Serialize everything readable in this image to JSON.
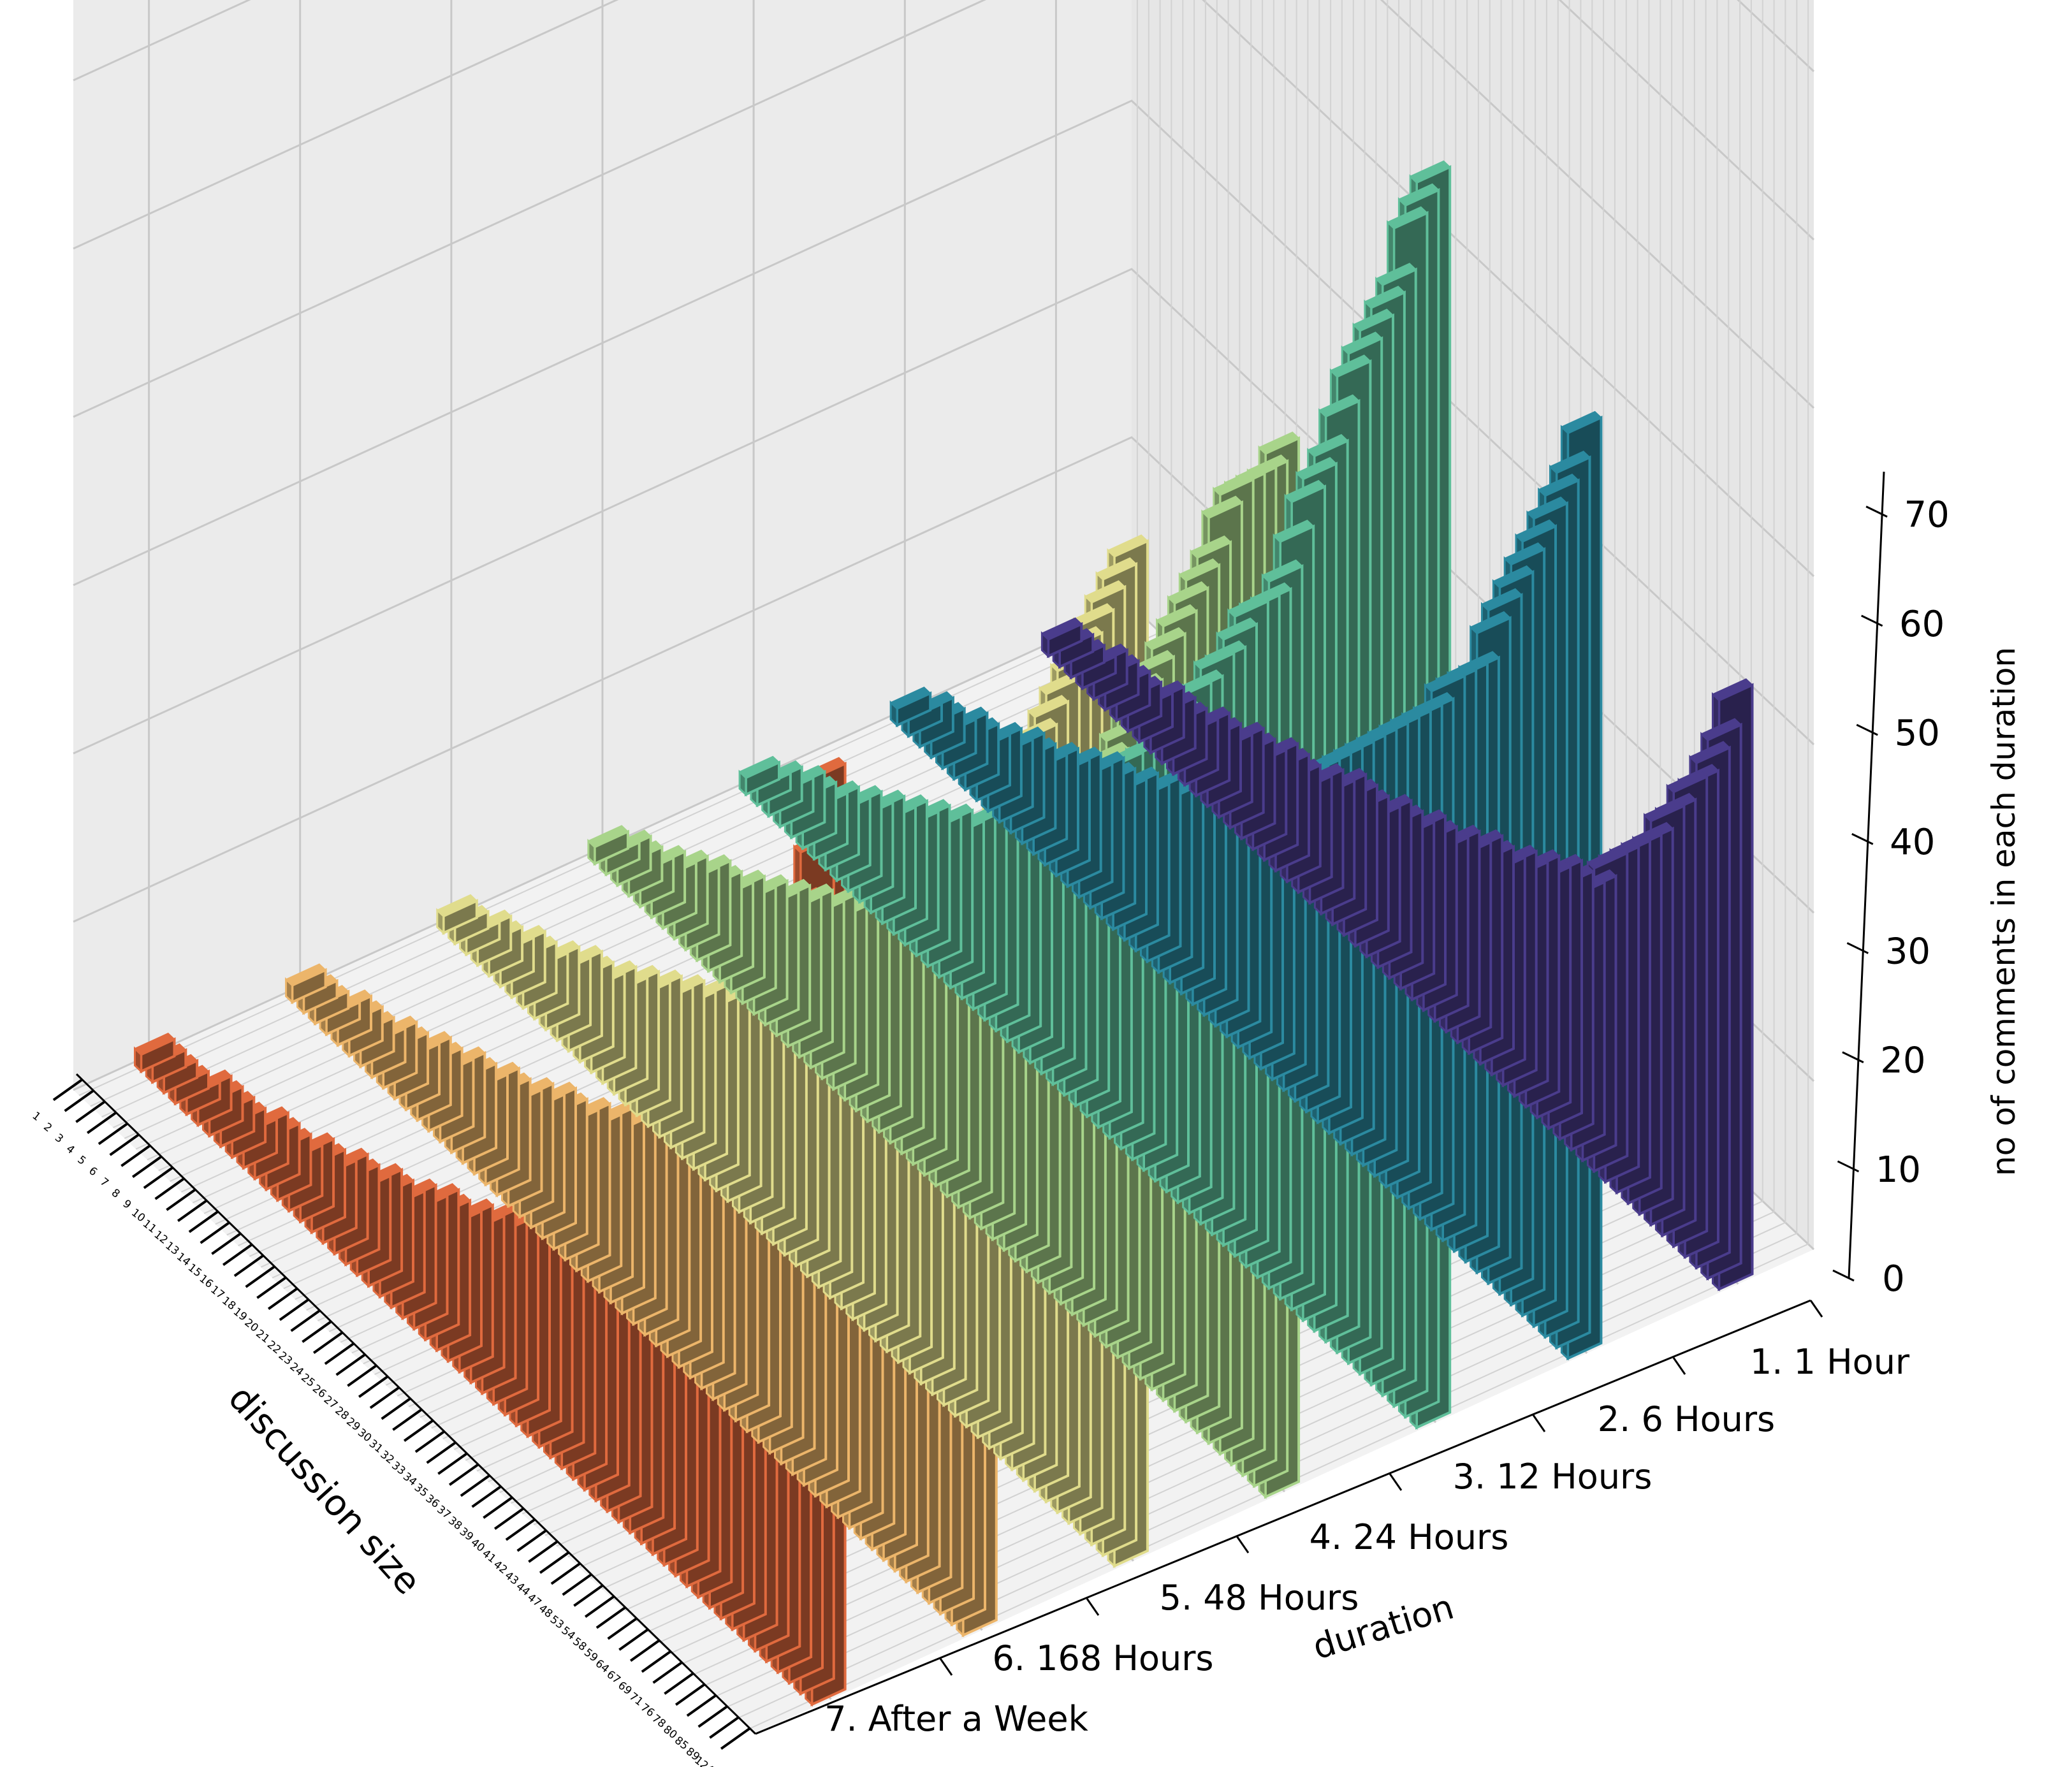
{
  "chart_data": {
    "type": "bar3d",
    "title": "",
    "xlabel": "discussion size",
    "ylabel": "duration",
    "zlabel": "no of comments in each duration",
    "zlim": [
      0,
      75
    ],
    "z_ticks": [
      "0",
      "10",
      "20",
      "30",
      "40",
      "50",
      "60",
      "70"
    ],
    "grid": true,
    "duration_labels": [
      "1. 1 Hour",
      "2. 6 Hours",
      "3. 12 Hours",
      "4. 24 Hours",
      "5. 48 Hours",
      "6. 168 Hours",
      "7. After a Week"
    ],
    "discussion_size_labels": [
      "1",
      "2",
      "3",
      "4",
      "5",
      "6",
      "7",
      "8",
      "9",
      "10",
      "11",
      "12",
      "13",
      "14",
      "15",
      "16",
      "17",
      "18",
      "19",
      "20",
      "21",
      "22",
      "23",
      "24",
      "25",
      "26",
      "27",
      "28",
      "29",
      "30",
      "31",
      "32",
      "33",
      "34",
      "35",
      "36",
      "37",
      "38",
      "39",
      "40",
      "41",
      "42",
      "43",
      "44",
      "47",
      "48",
      "53",
      "54",
      "58",
      "59",
      "64",
      "67",
      "69",
      "71",
      "76",
      "78",
      "80",
      "85",
      "89",
      "124"
    ],
    "series": [
      {
        "name": "1. 1 Hour",
        "color": "#4a3c8c",
        "values": [
          1,
          1,
          1,
          1,
          2,
          2,
          2,
          2,
          2,
          3,
          3,
          3,
          3,
          4,
          4,
          4,
          5,
          5,
          5,
          6,
          6,
          6,
          6,
          7,
          7,
          8,
          8,
          8,
          8,
          9,
          9,
          9,
          10,
          10,
          10,
          11,
          11,
          12,
          12,
          12,
          13,
          13,
          14,
          14,
          15,
          15,
          15,
          16,
          18,
          19,
          20,
          21,
          22,
          24,
          25,
          27,
          28,
          30,
          32,
          35
        ]
      },
      {
        "name": "2. 6 Hours",
        "color": "#2b8aa0",
        "values": [
          1,
          1,
          2,
          2,
          2,
          3,
          3,
          3,
          4,
          4,
          5,
          5,
          5,
          6,
          6,
          7,
          7,
          8,
          8,
          8,
          9,
          9,
          10,
          10,
          11,
          11,
          12,
          13,
          13,
          14,
          15,
          15,
          16,
          17,
          18,
          19,
          20,
          21,
          22,
          23,
          24,
          25,
          26,
          27,
          28,
          29,
          30,
          32,
          33,
          34,
          35,
          38,
          40,
          42,
          44,
          46,
          48,
          50,
          52,
          55
        ]
      },
      {
        "name": "3. 12 Hours",
        "color": "#5fbf9a",
        "values": [
          1,
          1,
          2,
          2,
          3,
          3,
          3,
          4,
          4,
          5,
          5,
          6,
          6,
          7,
          7,
          8,
          8,
          9,
          9,
          10,
          11,
          11,
          12,
          13,
          13,
          14,
          15,
          16,
          17,
          18,
          19,
          20,
          22,
          23,
          24,
          26,
          27,
          28,
          30,
          31,
          33,
          34,
          36,
          38,
          39,
          40,
          42,
          45,
          48,
          50,
          52,
          55,
          58,
          60,
          62,
          64,
          66,
          70,
          72,
          74
        ]
      },
      {
        "name": "4. 24 Hours",
        "color": "#a8d48a",
        "values": [
          1,
          1,
          2,
          2,
          2,
          3,
          3,
          4,
          4,
          5,
          5,
          5,
          6,
          6,
          7,
          7,
          8,
          8,
          9,
          9,
          10,
          10,
          11,
          11,
          12,
          13,
          13,
          14,
          15,
          16,
          17,
          18,
          19,
          20,
          21,
          22,
          23,
          24,
          26,
          27,
          28,
          30,
          31,
          33,
          34,
          36,
          38,
          40,
          42,
          44,
          46,
          48,
          50,
          52,
          55,
          57,
          58,
          59,
          60,
          62
        ]
      },
      {
        "name": "5. 48 Hours",
        "color": "#e0dc8c",
        "values": [
          1,
          1,
          1,
          2,
          2,
          2,
          3,
          3,
          3,
          4,
          4,
          5,
          5,
          5,
          6,
          6,
          7,
          7,
          8,
          8,
          9,
          9,
          10,
          10,
          11,
          12,
          12,
          13,
          14,
          14,
          15,
          16,
          17,
          18,
          19,
          20,
          21,
          22,
          23,
          24,
          26,
          27,
          28,
          30,
          31,
          33,
          34,
          36,
          38,
          40,
          42,
          44,
          46,
          48,
          50,
          52,
          54,
          56,
          58,
          60
        ]
      },
      {
        "name": "6. 168 Hours",
        "color": "#ecb56a",
        "values": [
          1,
          1,
          1,
          1,
          2,
          2,
          2,
          2,
          3,
          3,
          3,
          4,
          4,
          4,
          5,
          5,
          5,
          6,
          6,
          6,
          7,
          7,
          8,
          8,
          8,
          9,
          9,
          10,
          10,
          11,
          11,
          12,
          12,
          13,
          14,
          14,
          15,
          16,
          16,
          17,
          18,
          19,
          20,
          21,
          22,
          23,
          24,
          25,
          26,
          27,
          28,
          30,
          31,
          33,
          35,
          37,
          39,
          41,
          44,
          47
        ]
      },
      {
        "name": "7. After a Week",
        "color": "#e06a3e",
        "values": [
          1,
          1,
          1,
          1,
          1,
          2,
          2,
          2,
          2,
          2,
          3,
          3,
          3,
          3,
          4,
          4,
          4,
          5,
          5,
          5,
          6,
          6,
          6,
          7,
          7,
          8,
          8,
          8,
          9,
          9,
          10,
          10,
          11,
          11,
          12,
          13,
          13,
          14,
          15,
          16,
          17,
          18,
          19,
          20,
          21,
          22,
          24,
          25,
          27,
          28,
          30,
          32,
          34,
          36,
          38,
          40,
          43,
          46,
          50,
          55
        ]
      }
    ]
  }
}
